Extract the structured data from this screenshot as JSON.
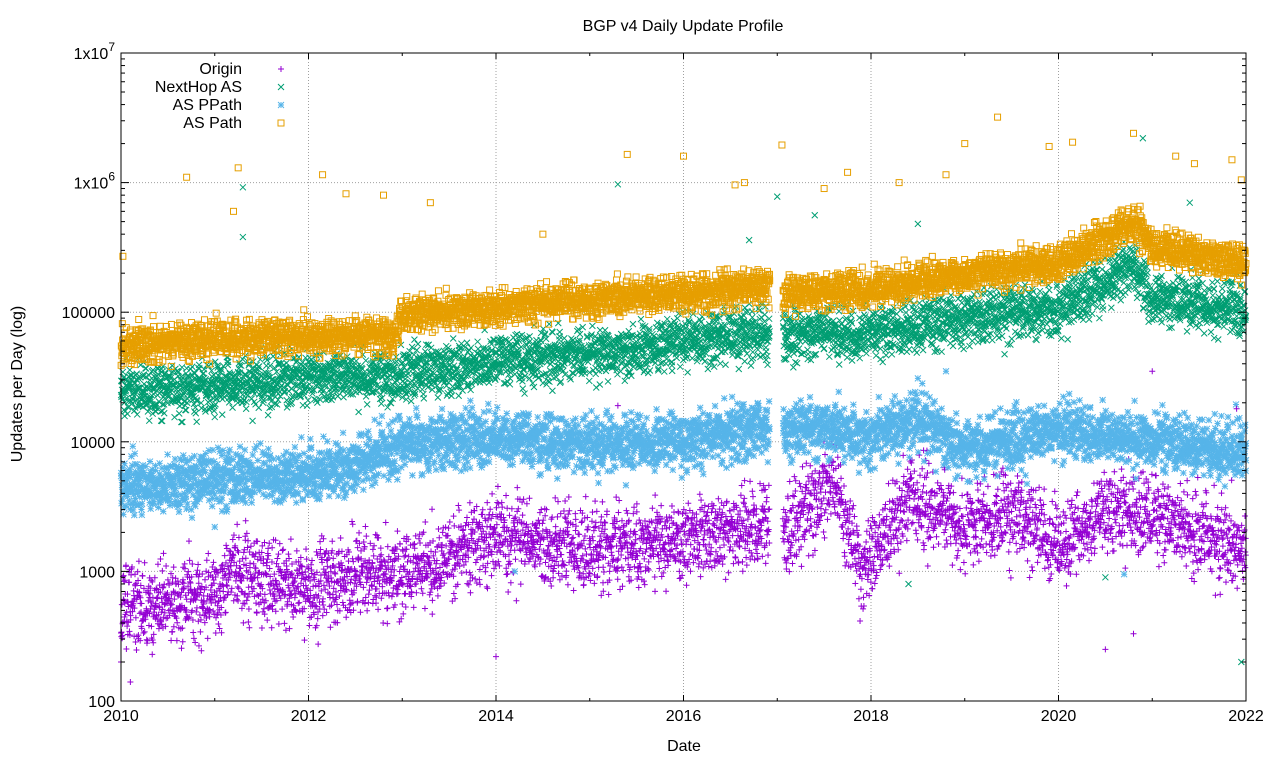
{
  "chart_data": {
    "type": "scatter",
    "title": "BGP v4 Daily Update Profile",
    "xlabel": "Date",
    "ylabel": "Updates per Day (log)",
    "xlim": [
      2010,
      2022
    ],
    "ylim": [
      100,
      10000000
    ],
    "yscale": "log",
    "grid": true,
    "legend_position": "top-left",
    "x_ticks": [
      2010,
      2012,
      2014,
      2016,
      2018,
      2020,
      2022
    ],
    "x_tick_labels": [
      "2010",
      "2012",
      "2014",
      "2016",
      "2018",
      "2020",
      "2022"
    ],
    "y_tick_values": [
      100,
      1000,
      10000,
      100000,
      1000000,
      10000000
    ],
    "y_tick_labels": [
      {
        "base": "100",
        "exp": ""
      },
      {
        "base": "1000",
        "exp": ""
      },
      {
        "base": "10000",
        "exp": ""
      },
      {
        "base": "100000",
        "exp": ""
      },
      {
        "base": "1x10",
        "exp": "6"
      },
      {
        "base": "1x10",
        "exp": "7"
      }
    ],
    "gap": [
      2016.92,
      2017.06
    ],
    "series": [
      {
        "name": "Origin",
        "marker": "plus",
        "color": "#9400d3",
        "trend": [
          [
            2010.0,
            550
          ],
          [
            2011.0,
            600
          ],
          [
            2011.2,
            1000
          ],
          [
            2012.0,
            750
          ],
          [
            2013.0,
            1000
          ],
          [
            2014.0,
            1800
          ],
          [
            2015.0,
            1500
          ],
          [
            2016.0,
            1700
          ],
          [
            2016.9,
            2300
          ],
          [
            2017.1,
            2000
          ],
          [
            2017.6,
            5000
          ],
          [
            2017.9,
            1000
          ],
          [
            2018.4,
            3800
          ],
          [
            2019.0,
            2300
          ],
          [
            2019.6,
            2800
          ],
          [
            2020.0,
            1500
          ],
          [
            2020.5,
            3000
          ],
          [
            2021.0,
            2600
          ],
          [
            2021.5,
            2000
          ],
          [
            2022.0,
            1500
          ]
        ],
        "spread": 0.32,
        "density": 380
      },
      {
        "name": "NextHop AS",
        "marker": "x",
        "color": "#009e73",
        "trend": [
          [
            2010.0,
            24000
          ],
          [
            2011.0,
            27000
          ],
          [
            2012.0,
            31000
          ],
          [
            2013.0,
            32000
          ],
          [
            2014.0,
            42000
          ],
          [
            2015.0,
            47000
          ],
          [
            2016.0,
            60000
          ],
          [
            2016.9,
            70000
          ],
          [
            2017.1,
            70000
          ],
          [
            2018.0,
            70000
          ],
          [
            2019.0,
            90000
          ],
          [
            2020.0,
            105000
          ],
          [
            2020.8,
            230000
          ],
          [
            2021.0,
            130000
          ],
          [
            2022.0,
            100000
          ]
        ],
        "spread": 0.2,
        "density": 380
      },
      {
        "name": "AS PPath",
        "marker": "star",
        "color": "#56b4e9",
        "trend": [
          [
            2010.0,
            4500
          ],
          [
            2011.0,
            5000
          ],
          [
            2012.0,
            5500
          ],
          [
            2012.9,
            8500
          ],
          [
            2013.0,
            10000
          ],
          [
            2014.0,
            11000
          ],
          [
            2015.0,
            9500
          ],
          [
            2016.0,
            10000
          ],
          [
            2016.9,
            13000
          ],
          [
            2017.1,
            13000
          ],
          [
            2018.0,
            11000
          ],
          [
            2018.5,
            15000
          ],
          [
            2019.0,
            8500
          ],
          [
            2020.0,
            12000
          ],
          [
            2021.0,
            10000
          ],
          [
            2022.0,
            8500
          ]
        ],
        "spread": 0.22,
        "density": 380
      },
      {
        "name": "AS Path",
        "marker": "square",
        "color": "#e69f00",
        "trend": [
          [
            2010.0,
            55000
          ],
          [
            2011.0,
            62000
          ],
          [
            2012.0,
            65000
          ],
          [
            2012.9,
            65000
          ],
          [
            2013.0,
            95000
          ],
          [
            2014.0,
            110000
          ],
          [
            2015.0,
            125000
          ],
          [
            2016.0,
            140000
          ],
          [
            2016.9,
            160000
          ],
          [
            2017.1,
            140000
          ],
          [
            2018.0,
            150000
          ],
          [
            2019.0,
            200000
          ],
          [
            2020.0,
            240000
          ],
          [
            2020.8,
            500000
          ],
          [
            2021.0,
            320000
          ],
          [
            2022.0,
            230000
          ]
        ],
        "spread": 0.14,
        "density": 380
      }
    ],
    "outliers": [
      {
        "series": "AS Path",
        "points": [
          [
            2010.02,
            270000
          ],
          [
            2010.7,
            1100000
          ],
          [
            2011.25,
            1300000
          ],
          [
            2011.2,
            600000
          ],
          [
            2012.15,
            1150000
          ],
          [
            2012.4,
            820000
          ],
          [
            2012.8,
            800000
          ],
          [
            2013.3,
            700000
          ],
          [
            2014.5,
            400000
          ],
          [
            2015.4,
            1650000
          ],
          [
            2016.0,
            1600000
          ],
          [
            2016.65,
            1000000
          ],
          [
            2016.55,
            960000
          ],
          [
            2017.05,
            1950000
          ],
          [
            2017.5,
            900000
          ],
          [
            2017.75,
            1200000
          ],
          [
            2018.3,
            1000000
          ],
          [
            2018.8,
            1150000
          ],
          [
            2019.0,
            2000000
          ],
          [
            2019.35,
            3200000
          ],
          [
            2019.9,
            1900000
          ],
          [
            2020.15,
            2050000
          ],
          [
            2020.8,
            2400000
          ],
          [
            2021.25,
            1600000
          ],
          [
            2021.45,
            1400000
          ],
          [
            2021.85,
            1500000
          ],
          [
            2021.78,
            330000
          ],
          [
            2021.95,
            1050000
          ]
        ]
      },
      {
        "series": "NextHop AS",
        "points": [
          [
            2011.3,
            920000
          ],
          [
            2011.3,
            380000
          ],
          [
            2015.3,
            970000
          ],
          [
            2016.7,
            360000
          ],
          [
            2017.0,
            780000
          ],
          [
            2017.4,
            560000
          ],
          [
            2018.5,
            480000
          ],
          [
            2020.9,
            2200000
          ],
          [
            2021.4,
            700000
          ],
          [
            2021.95,
            200
          ],
          [
            2018.4,
            800
          ],
          [
            2020.5,
            900
          ]
        ]
      },
      {
        "series": "AS PPath",
        "points": [
          [
            2011.0,
            2200
          ],
          [
            2014.2,
            1000
          ],
          [
            2018.8,
            35000
          ],
          [
            2020.7,
            950
          ],
          [
            2022.0,
            7200
          ]
        ]
      },
      {
        "series": "Origin",
        "points": [
          [
            2010.1,
            140
          ],
          [
            2010.0,
            200
          ],
          [
            2014.0,
            220
          ],
          [
            2015.3,
            19000
          ],
          [
            2020.5,
            250
          ],
          [
            2020.8,
            330
          ],
          [
            2021.9,
            18000
          ],
          [
            2021.0,
            35000
          ]
        ]
      }
    ]
  }
}
